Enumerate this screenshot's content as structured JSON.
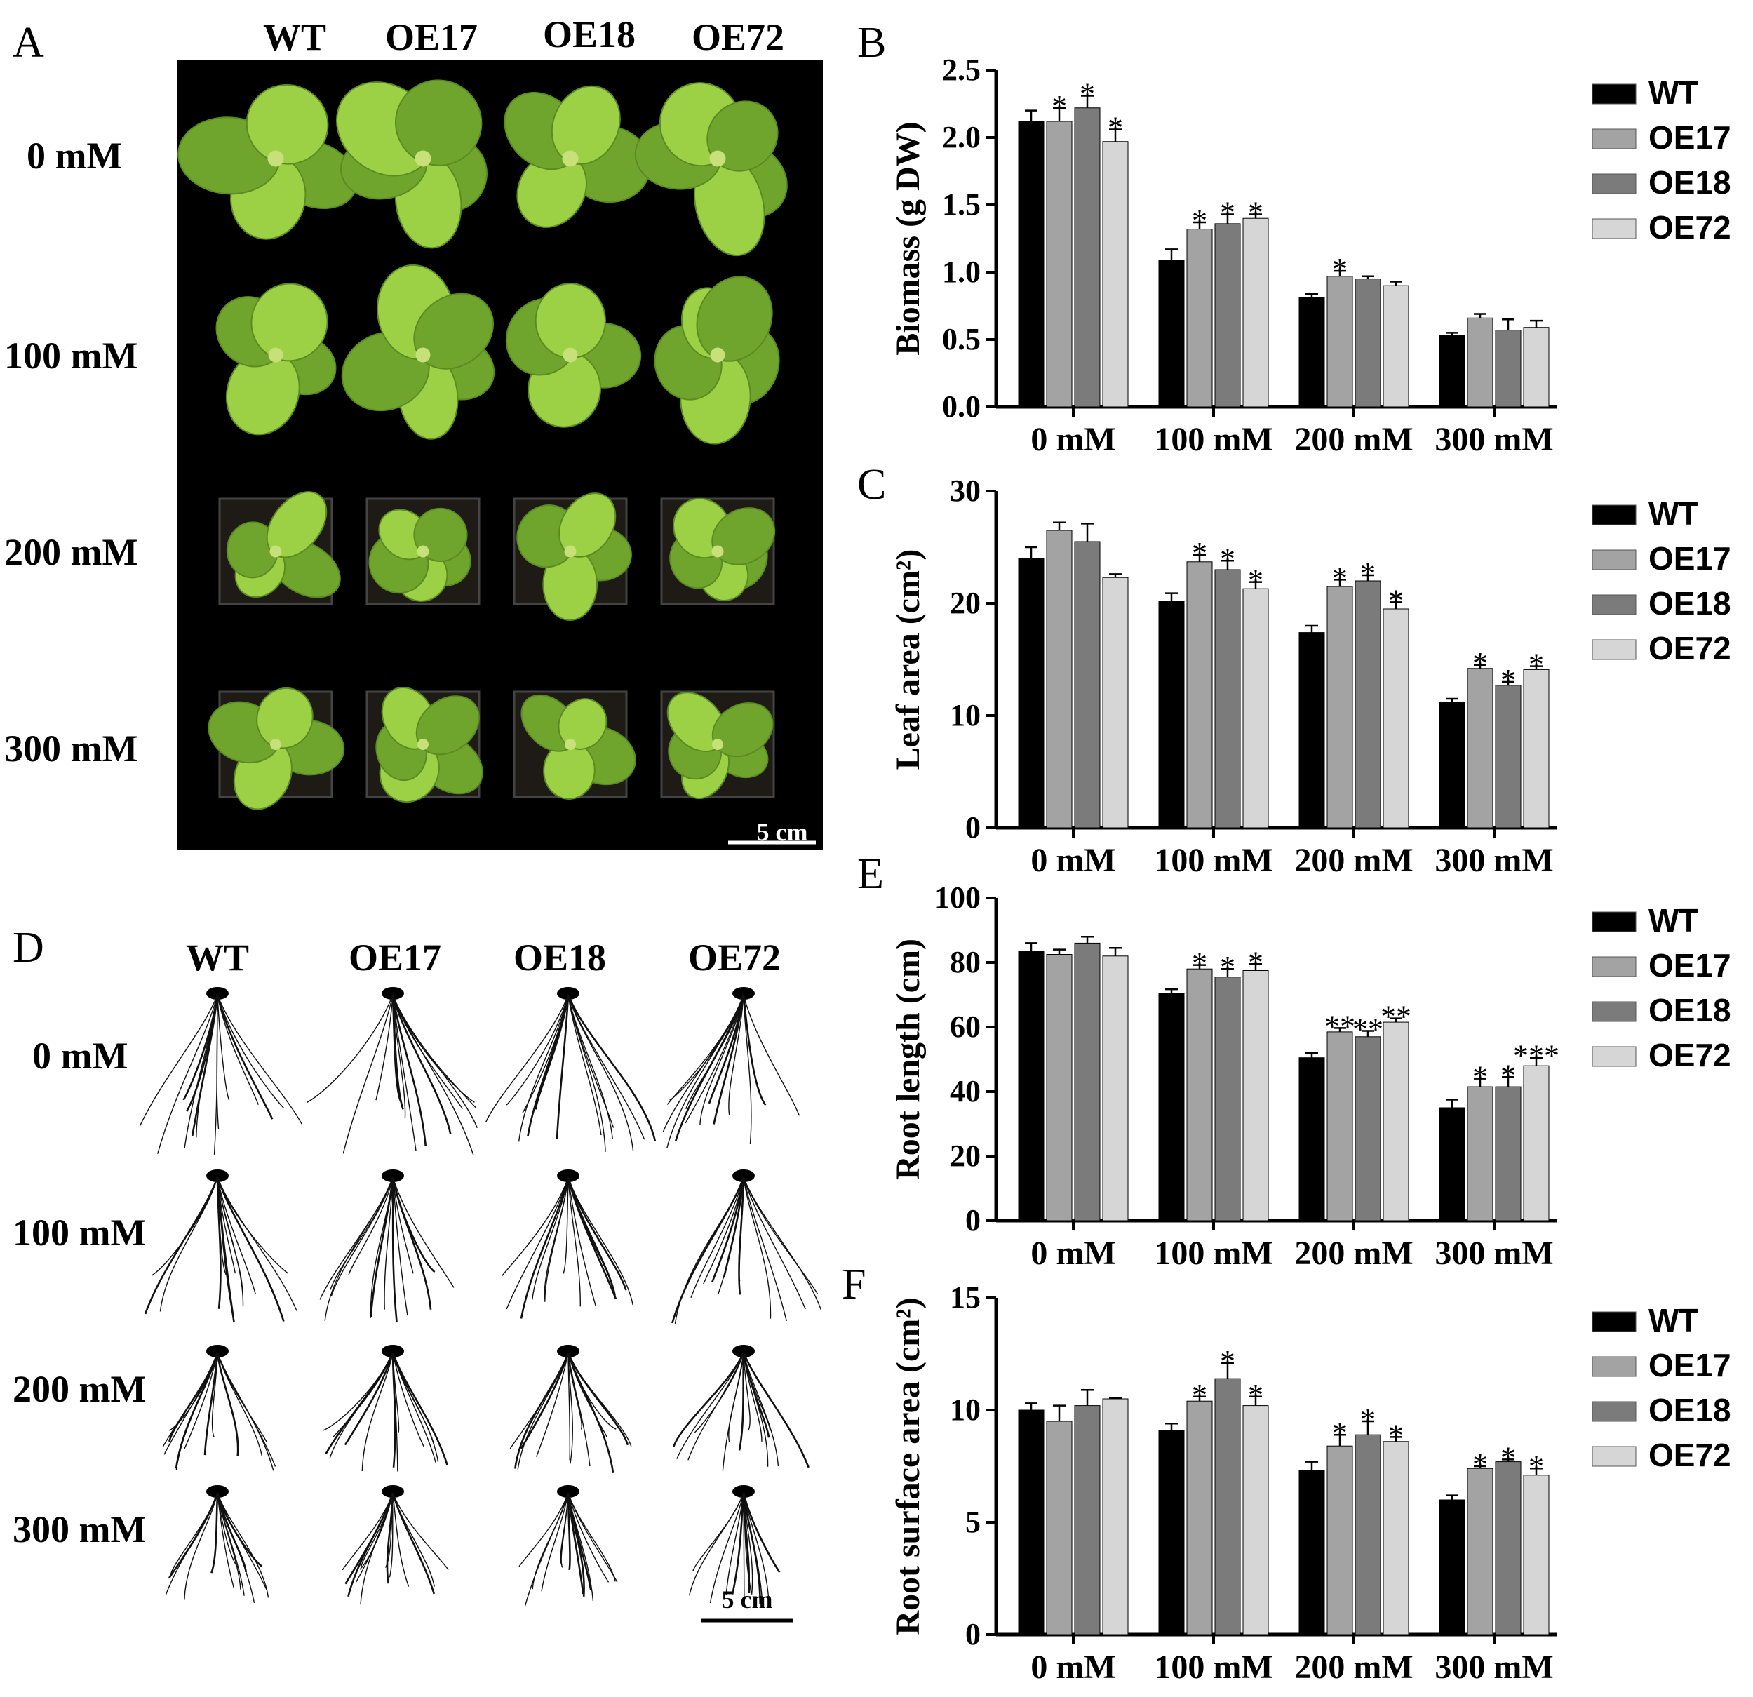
{
  "panels": {
    "A": {
      "letter": "A",
      "columns": [
        "WT",
        "OE17",
        "OE18",
        "OE72"
      ],
      "rows": [
        "0 mM",
        "100 mM",
        "200 mM",
        "300 mM"
      ],
      "scale_bar": "5 cm"
    },
    "D": {
      "letter": "D",
      "columns": [
        "WT",
        "OE17",
        "OE18",
        "OE72"
      ],
      "rows": [
        "0 mM",
        "100 mM",
        "200 mM",
        "300 mM"
      ],
      "scale_bar": "5 cm"
    }
  },
  "colors": {
    "WT": "#000000",
    "OE17": "#a3a3a3",
    "OE18": "#7b7b7b",
    "OE72": "#d6d6d6",
    "photo_bg": "#000000",
    "leaf": "#9cd045",
    "leaf_dark": "#6fa52c",
    "root": "#111111"
  },
  "chart_data": [
    {
      "panel": "B",
      "type": "bar",
      "ylabel": "Biomass (g DW)",
      "ylim": [
        0,
        2.5
      ],
      "yticks": [
        "0.0",
        "0.5",
        "1.0",
        "1.5",
        "2.0",
        "2.5"
      ],
      "categories": [
        "0 mM",
        "100 mM",
        "200 mM",
        "300 mM"
      ],
      "series": [
        {
          "name": "WT",
          "values": [
            2.12,
            1.09,
            0.81,
            0.53
          ],
          "errors": [
            0.08,
            0.08,
            0.03,
            0.02
          ]
        },
        {
          "name": "OE17",
          "values": [
            2.12,
            1.32,
            0.97,
            0.66
          ],
          "errors": [
            0.1,
            0.05,
            0.04,
            0.03
          ]
        },
        {
          "name": "OE18",
          "values": [
            2.22,
            1.36,
            0.95,
            0.57
          ],
          "errors": [
            0.09,
            0.07,
            0.02,
            0.08
          ]
        },
        {
          "name": "OE72",
          "values": [
            1.97,
            1.4,
            0.9,
            0.59
          ],
          "errors": [
            0.09,
            0.03,
            0.03,
            0.05
          ]
        }
      ],
      "annotations": [
        [
          "",
          "*",
          "*",
          "*"
        ],
        [
          "",
          "*",
          "*",
          "*"
        ],
        [
          "",
          "*",
          "",
          ""
        ]
      ]
    },
    {
      "panel": "C",
      "type": "bar",
      "ylabel": "Leaf area (cm²)",
      "ylim": [
        0,
        30
      ],
      "yticks": [
        "0",
        "10",
        "20",
        "30"
      ],
      "categories": [
        "0 mM",
        "100 mM",
        "200 mM",
        "300 mM"
      ],
      "series": [
        {
          "name": "WT",
          "values": [
            24.0,
            20.2,
            17.4,
            11.2
          ],
          "errors": [
            1.0,
            0.7,
            0.6,
            0.3
          ]
        },
        {
          "name": "OE17",
          "values": [
            26.5,
            23.7,
            21.5,
            14.2
          ],
          "errors": [
            0.7,
            0.6,
            0.6,
            0.3
          ]
        },
        {
          "name": "OE18",
          "values": [
            25.5,
            23.0,
            22.0,
            12.7
          ],
          "errors": [
            1.6,
            0.8,
            0.5,
            0.3
          ]
        },
        {
          "name": "OE72",
          "values": [
            22.3,
            21.3,
            19.5,
            14.1
          ],
          "errors": [
            0.3,
            0.6,
            0.6,
            0.3
          ]
        }
      ],
      "annotations": [
        [
          "",
          "",
          "",
          ""
        ],
        [
          "",
          "*",
          "*",
          "*"
        ],
        [
          "",
          "*",
          "*",
          "*"
        ],
        [
          "",
          "*",
          "*",
          "*"
        ]
      ]
    },
    {
      "panel": "E",
      "type": "bar",
      "ylabel": "Root length (cm)",
      "ylim": [
        0,
        100
      ],
      "yticks": [
        "0",
        "20",
        "40",
        "60",
        "80",
        "100"
      ],
      "categories": [
        "0 mM",
        "100 mM",
        "200 mM",
        "300 mM"
      ],
      "series": [
        {
          "name": "WT",
          "values": [
            83.5,
            70.5,
            50.5,
            35.0
          ],
          "errors": [
            2.5,
            1.2,
            1.5,
            2.5
          ]
        },
        {
          "name": "OE17",
          "values": [
            82.5,
            78.0,
            58.5,
            41.5
          ],
          "errors": [
            1.5,
            1.2,
            1.2,
            2.5
          ]
        },
        {
          "name": "OE18",
          "values": [
            86.0,
            75.5,
            57.0,
            41.5
          ],
          "errors": [
            2.0,
            2.5,
            1.8,
            3.0
          ]
        },
        {
          "name": "OE72",
          "values": [
            82.0,
            77.5,
            61.5,
            48.0
          ],
          "errors": [
            2.5,
            2.0,
            1.2,
            2.5
          ]
        }
      ],
      "annotations": [
        [
          "",
          "",
          "",
          ""
        ],
        [
          "",
          "*",
          "*",
          "*"
        ],
        [
          "",
          "**",
          "**",
          "**"
        ],
        [
          "",
          "*",
          "*",
          "***"
        ]
      ]
    },
    {
      "panel": "F",
      "type": "bar",
      "ylabel": "Root surface area (cm²)",
      "ylim": [
        0,
        15
      ],
      "yticks": [
        "0",
        "5",
        "10",
        "15"
      ],
      "categories": [
        "0 mM",
        "100 mM",
        "200 mM",
        "300 mM"
      ],
      "series": [
        {
          "name": "WT",
          "values": [
            10.0,
            9.1,
            7.3,
            6.0
          ],
          "errors": [
            0.3,
            0.3,
            0.4,
            0.2
          ]
        },
        {
          "name": "OE17",
          "values": [
            9.5,
            10.4,
            8.4,
            7.4
          ],
          "errors": [
            0.7,
            0.2,
            0.5,
            0.1
          ]
        },
        {
          "name": "OE18",
          "values": [
            10.2,
            11.4,
            8.9,
            7.7
          ],
          "errors": [
            0.7,
            0.7,
            0.6,
            0.1
          ]
        },
        {
          "name": "OE72",
          "values": [
            10.5,
            10.2,
            8.6,
            7.1
          ],
          "errors": [
            0.05,
            0.4,
            0.2,
            0.3
          ]
        }
      ],
      "annotations": [
        [
          "",
          "",
          "",
          ""
        ],
        [
          "",
          "*",
          "*",
          "*"
        ],
        [
          "",
          "*",
          "*",
          "*"
        ],
        [
          "",
          "*",
          "*",
          "*"
        ]
      ]
    }
  ],
  "chart_letters": [
    "B",
    "C",
    "E",
    "F"
  ]
}
